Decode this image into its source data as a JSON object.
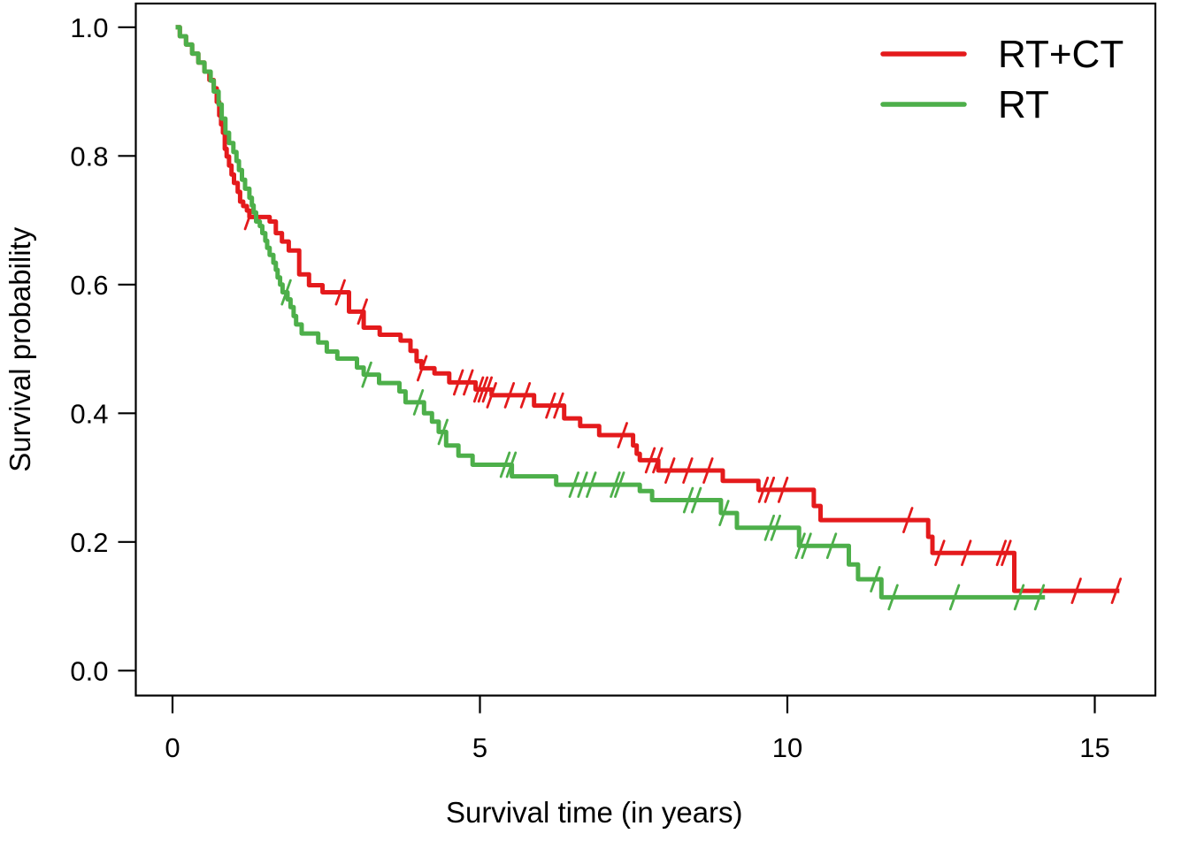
{
  "figure": {
    "background": "#ffffff",
    "foreground": "#000000"
  },
  "chart_data": {
    "type": "line",
    "subtype": "kaplan-meier-step",
    "title": "",
    "xlabel": "Survival time (in years)",
    "ylabel": "Survival probability",
    "xlim": [
      0,
      15.5
    ],
    "ylim": [
      0.0,
      1.0
    ],
    "xticks": [
      0,
      5,
      10,
      15
    ],
    "xtick_labels": [
      "0",
      "5",
      "10",
      "15"
    ],
    "yticks": [
      0.0,
      0.2,
      0.4,
      0.6,
      0.8,
      1.0
    ],
    "ytick_labels": [
      "0.0",
      "0.2",
      "0.4",
      "0.6",
      "0.8",
      "1.0"
    ],
    "grid": false,
    "box": true,
    "legend": {
      "position": "top-right"
    },
    "series": [
      {
        "name": "RT+CT",
        "color": "#e41a1c",
        "end_time": 15.4,
        "steps": [
          [
            0.05,
            1.0
          ],
          [
            0.12,
            0.986
          ],
          [
            0.22,
            0.973
          ],
          [
            0.32,
            0.959
          ],
          [
            0.42,
            0.945
          ],
          [
            0.52,
            0.931
          ],
          [
            0.6,
            0.918
          ],
          [
            0.67,
            0.905
          ],
          [
            0.72,
            0.884
          ],
          [
            0.76,
            0.863
          ],
          [
            0.79,
            0.849
          ],
          [
            0.82,
            0.836
          ],
          [
            0.85,
            0.811
          ],
          [
            0.88,
            0.799
          ],
          [
            0.92,
            0.785
          ],
          [
            0.96,
            0.771
          ],
          [
            1.0,
            0.758
          ],
          [
            1.06,
            0.744
          ],
          [
            1.1,
            0.729
          ],
          [
            1.15,
            0.722
          ],
          [
            1.21,
            0.715
          ],
          [
            1.25,
            0.705
          ],
          [
            1.58,
            0.698
          ],
          [
            1.68,
            0.68
          ],
          [
            1.78,
            0.667
          ],
          [
            1.89,
            0.653
          ],
          [
            2.06,
            0.616
          ],
          [
            2.22,
            0.599
          ],
          [
            2.44,
            0.588
          ],
          [
            2.87,
            0.558
          ],
          [
            3.11,
            0.533
          ],
          [
            3.37,
            0.522
          ],
          [
            3.71,
            0.513
          ],
          [
            3.87,
            0.497
          ],
          [
            3.97,
            0.481
          ],
          [
            4.05,
            0.47
          ],
          [
            4.26,
            0.462
          ],
          [
            4.5,
            0.448
          ],
          [
            4.93,
            0.437
          ],
          [
            5.19,
            0.428
          ],
          [
            5.88,
            0.412
          ],
          [
            6.37,
            0.392
          ],
          [
            6.63,
            0.38
          ],
          [
            6.94,
            0.366
          ],
          [
            7.49,
            0.35
          ],
          [
            7.55,
            0.337
          ],
          [
            7.6,
            0.327
          ],
          [
            7.9,
            0.311
          ],
          [
            8.95,
            0.295
          ],
          [
            9.53,
            0.281
          ],
          [
            10.43,
            0.256
          ],
          [
            10.54,
            0.234
          ],
          [
            12.29,
            0.208
          ],
          [
            12.36,
            0.183
          ],
          [
            13.69,
            0.124
          ]
        ],
        "censor_times": [
          1.25,
          2.73,
          3.09,
          4.06,
          4.65,
          4.81,
          4.98,
          5.05,
          5.12,
          5.19,
          5.48,
          5.74,
          6.15,
          6.28,
          7.32,
          7.77,
          7.89,
          8.09,
          8.38,
          8.71,
          9.61,
          9.71,
          9.93,
          11.96,
          12.48,
          12.91,
          13.48,
          13.56,
          14.7,
          15.35
        ]
      },
      {
        "name": "RT",
        "color": "#4daf4a",
        "end_time": 14.19,
        "steps": [
          [
            0.05,
            1.0
          ],
          [
            0.12,
            0.986
          ],
          [
            0.22,
            0.973
          ],
          [
            0.32,
            0.959
          ],
          [
            0.42,
            0.945
          ],
          [
            0.52,
            0.931
          ],
          [
            0.62,
            0.917
          ],
          [
            0.67,
            0.9
          ],
          [
            0.75,
            0.88
          ],
          [
            0.8,
            0.858
          ],
          [
            0.86,
            0.836
          ],
          [
            0.92,
            0.82
          ],
          [
            0.99,
            0.806
          ],
          [
            1.04,
            0.792
          ],
          [
            1.08,
            0.778
          ],
          [
            1.13,
            0.763
          ],
          [
            1.18,
            0.749
          ],
          [
            1.25,
            0.735
          ],
          [
            1.29,
            0.723
          ],
          [
            1.32,
            0.712
          ],
          [
            1.36,
            0.698
          ],
          [
            1.42,
            0.691
          ],
          [
            1.46,
            0.68
          ],
          [
            1.51,
            0.668
          ],
          [
            1.54,
            0.657
          ],
          [
            1.58,
            0.646
          ],
          [
            1.64,
            0.634
          ],
          [
            1.68,
            0.623
          ],
          [
            1.71,
            0.611
          ],
          [
            1.75,
            0.6
          ],
          [
            1.79,
            0.588
          ],
          [
            1.87,
            0.577
          ],
          [
            1.92,
            0.565
          ],
          [
            1.97,
            0.551
          ],
          [
            2.01,
            0.538
          ],
          [
            2.1,
            0.524
          ],
          [
            2.37,
            0.51
          ],
          [
            2.51,
            0.496
          ],
          [
            2.68,
            0.485
          ],
          [
            3.0,
            0.471
          ],
          [
            3.11,
            0.46
          ],
          [
            3.36,
            0.447
          ],
          [
            3.69,
            0.434
          ],
          [
            3.79,
            0.417
          ],
          [
            4.09,
            0.4
          ],
          [
            4.22,
            0.387
          ],
          [
            4.33,
            0.371
          ],
          [
            4.45,
            0.35
          ],
          [
            4.65,
            0.334
          ],
          [
            4.88,
            0.32
          ],
          [
            5.52,
            0.302
          ],
          [
            6.24,
            0.289
          ],
          [
            7.6,
            0.279
          ],
          [
            7.8,
            0.265
          ],
          [
            8.92,
            0.245
          ],
          [
            9.18,
            0.222
          ],
          [
            10.19,
            0.194
          ],
          [
            11.0,
            0.165
          ],
          [
            11.15,
            0.142
          ],
          [
            11.53,
            0.114
          ]
        ],
        "censor_times": [
          1.85,
          3.16,
          4.0,
          4.4,
          5.41,
          5.51,
          6.53,
          6.67,
          6.81,
          7.2,
          7.27,
          8.39,
          8.52,
          8.97,
          9.71,
          9.81,
          10.21,
          10.31,
          10.72,
          11.43,
          11.72,
          12.72,
          13.77,
          14.1
        ]
      }
    ]
  }
}
